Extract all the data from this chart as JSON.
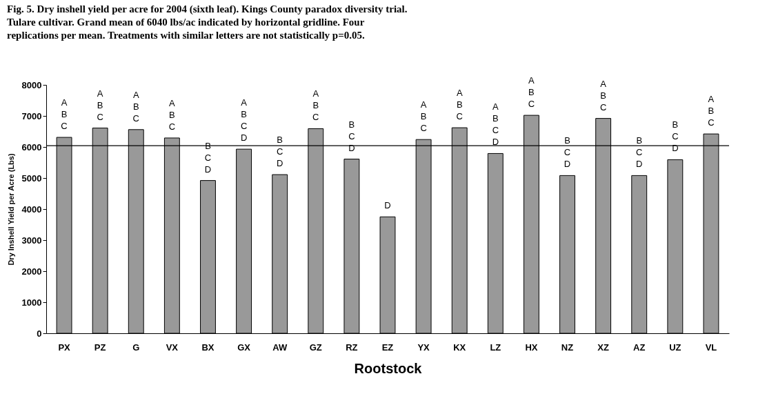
{
  "chart_data": {
    "type": "bar",
    "title": "Fig. 5. Dry inshell yield per acre for 2004 (sixth leaf).  Kings County paradox diversity trial.\nTulare cultivar.  Grand mean of 6040 lbs/ac indicated by horizontal gridline.  Four\nreplications per mean.  Treatments with similar letters are not statistically p=0.05.",
    "xlabel": "Rootstock",
    "ylabel": "Dry Inshell Yield per Acre (Lbs)",
    "categories": [
      "PX",
      "PZ",
      "G",
      "VX",
      "BX",
      "GX",
      "AW",
      "GZ",
      "RZ",
      "EZ",
      "YX",
      "KX",
      "LZ",
      "HX",
      "NZ",
      "XZ",
      "AZ",
      "UZ",
      "VL"
    ],
    "values": [
      6310,
      6610,
      6560,
      6290,
      4920,
      5930,
      5110,
      6590,
      5610,
      3750,
      6240,
      6620,
      5790,
      7020,
      5080,
      6920,
      5080,
      5590,
      6420
    ],
    "color": "#999999",
    "ylim": [
      0,
      8000
    ],
    "yticks": [
      0,
      1000,
      2000,
      3000,
      4000,
      5000,
      6000,
      7000,
      8000
    ],
    "grid": false,
    "ref_lines": [
      {
        "axis": "y",
        "value": 6040,
        "color": "#000000"
      }
    ],
    "annotations": [
      {
        "text": "A\nB\nC",
        "x": "PX",
        "y": 6310
      },
      {
        "text": "A\nB\nC",
        "x": "PZ",
        "y": 6610
      },
      {
        "text": "A\nB\nC",
        "x": "G",
        "y": 6560
      },
      {
        "text": "A\nB\nC",
        "x": "VX",
        "y": 6290
      },
      {
        "text": "B\nC\nD",
        "x": "BX",
        "y": 4920
      },
      {
        "text": "A\nB\nC\nD",
        "x": "GX",
        "y": 5930
      },
      {
        "text": "B\nC\nD",
        "x": "AW",
        "y": 5110
      },
      {
        "text": "A\nB\nC",
        "x": "GZ",
        "y": 6590
      },
      {
        "text": "B\nC\nD",
        "x": "RZ",
        "y": 5610
      },
      {
        "text": "D",
        "x": "EZ",
        "y": 3750
      },
      {
        "text": "A\nB\nC",
        "x": "YX",
        "y": 6240
      },
      {
        "text": "A\nB\nC",
        "x": "KX",
        "y": 6620
      },
      {
        "text": "A\nB\nC\nD",
        "x": "LZ",
        "y": 5790
      },
      {
        "text": "A\nB\nC",
        "x": "HX",
        "y": 7020
      },
      {
        "text": "B\nC\nD",
        "x": "NZ",
        "y": 5080
      },
      {
        "text": "A\nB\nC",
        "x": "XZ",
        "y": 6920
      },
      {
        "text": "B\nC\nD",
        "x": "AZ",
        "y": 5080
      },
      {
        "text": "B\nC\nD",
        "x": "UZ",
        "y": 5590
      },
      {
        "text": "A\nB\nC",
        "x": "VL",
        "y": 6420
      }
    ]
  }
}
